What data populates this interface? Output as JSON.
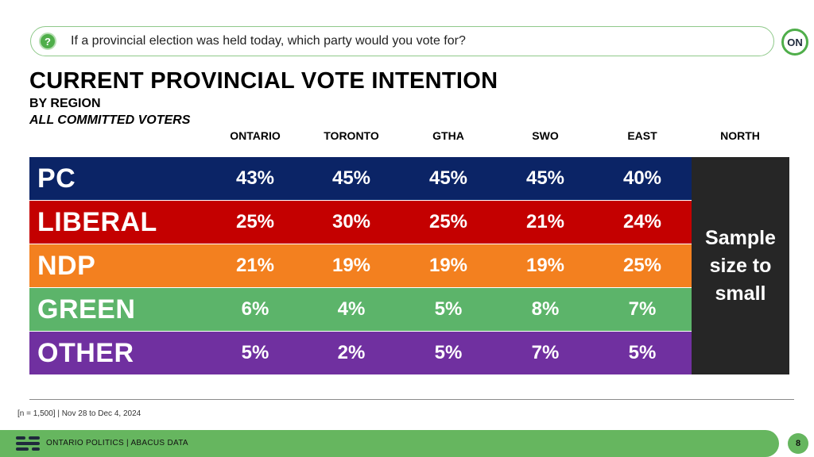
{
  "question": "If a provincial election was held today, which party would you vote for?",
  "logo_text": "ON",
  "title": "CURRENT PROVINCIAL VOTE INTENTION",
  "subtitle": "BY REGION",
  "subtitle2": "ALL COMMITTED VOTERS",
  "north_note": "Sample size to small",
  "footnote": "[n = 1,500] | Nov 28 to Dec 4, 2024",
  "footer_text": "ONTARIO POLITICS | ABACUS DATA",
  "page_number": "8",
  "chart_data": {
    "type": "table",
    "columns": [
      "ONTARIO",
      "TORONTO",
      "GTHA",
      "SWO",
      "EAST",
      "NORTH"
    ],
    "rows": [
      {
        "name": "PC",
        "color": "#0b2466",
        "values": [
          "43%",
          "45%",
          "45%",
          "45%",
          "40%"
        ]
      },
      {
        "name": "LIBERAL",
        "color": "#c40000",
        "values": [
          "25%",
          "30%",
          "25%",
          "21%",
          "24%"
        ]
      },
      {
        "name": "NDP",
        "color": "#f3801f",
        "values": [
          "21%",
          "19%",
          "19%",
          "19%",
          "25%"
        ]
      },
      {
        "name": "GREEN",
        "color": "#5cb46a",
        "values": [
          "6%",
          "4%",
          "5%",
          "8%",
          "7%"
        ]
      },
      {
        "name": "OTHER",
        "color": "#7030a0",
        "values": [
          "5%",
          "2%",
          "5%",
          "7%",
          "5%"
        ]
      }
    ]
  },
  "colors": {
    "accent_green": "#66b65f",
    "north_box": "#262626"
  }
}
